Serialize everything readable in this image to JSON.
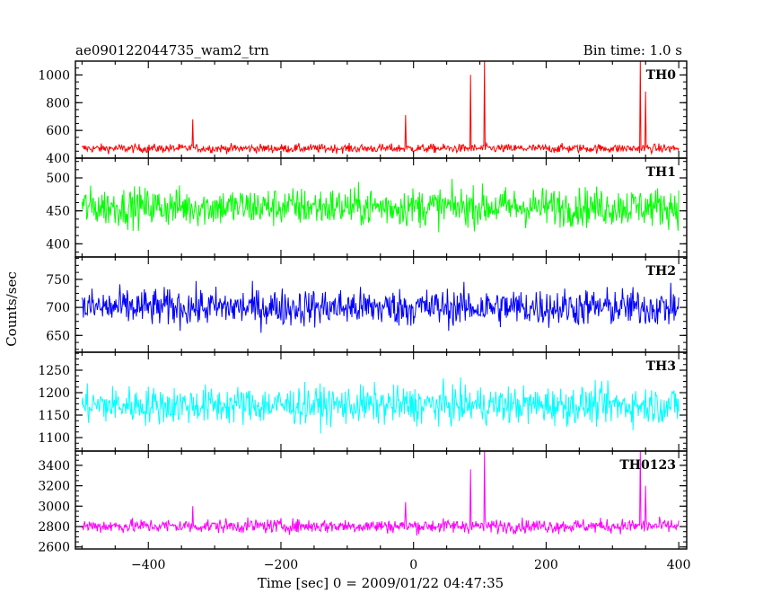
{
  "header": {
    "title": "ae090122044735_wam2_trn",
    "bin_time": "Bin time: 1.0 s"
  },
  "axes": {
    "ylabel": "Counts/sec",
    "xlabel": "Time [sec] 0 = 2009/01/22 04:47:35"
  },
  "chart_data": {
    "type": "line",
    "title": "ae090122044735_wam2_trn",
    "subtitle": "Bin time: 1.0 s",
    "xlabel": "Time [sec] 0 = 2009/01/22 04:47:35",
    "ylabel": "Counts/sec",
    "xlim": [
      -510,
      412
    ],
    "x_start": -500,
    "x_end": 400,
    "x_step": 1,
    "x_ticks": [
      -400,
      -200,
      0,
      200,
      400
    ],
    "x_tick_labels": [
      "−400",
      "−200",
      "0",
      "200",
      "400"
    ],
    "grid": false,
    "panels": [
      {
        "name": "TH0",
        "color": "#ff0000",
        "ylim": [
          400,
          1100
        ],
        "y_ticks": [
          400,
          600,
          800,
          1000
        ],
        "y_tick_labels": [
          "400",
          "600",
          "800",
          "1000"
        ],
        "baseline": 470,
        "noise_amplitude": 30,
        "peaks": [
          {
            "x": -333,
            "y": 680
          },
          {
            "x": -12,
            "y": 710
          },
          {
            "x": 86,
            "y": 1000
          },
          {
            "x": 107,
            "y": 1100
          },
          {
            "x": 342,
            "y": 1100
          },
          {
            "x": 350,
            "y": 880
          }
        ]
      },
      {
        "name": "TH1",
        "color": "#00ff00",
        "ylim": [
          380,
          530
        ],
        "y_ticks": [
          400,
          450,
          500
        ],
        "y_tick_labels": [
          "400",
          "450",
          "500"
        ],
        "baseline": 456,
        "noise_amplitude": 28,
        "peaks": []
      },
      {
        "name": "TH2",
        "color": "#0000ff",
        "ylim": [
          620,
          790
        ],
        "y_ticks": [
          650,
          700,
          750
        ],
        "y_tick_labels": [
          "650",
          "700",
          "750"
        ],
        "baseline": 700,
        "noise_amplitude": 32,
        "peaks": []
      },
      {
        "name": "TH3",
        "color": "#00ffff",
        "ylim": [
          1070,
          1290
        ],
        "y_ticks": [
          1100,
          1150,
          1200,
          1250
        ],
        "y_tick_labels": [
          "1100",
          "1150",
          "1200",
          "1250"
        ],
        "baseline": 1172,
        "noise_amplitude": 40,
        "peaks": []
      },
      {
        "name": "TH0123",
        "color": "#ff00ff",
        "ylim": [
          2580,
          3540
        ],
        "y_ticks": [
          2600,
          2800,
          3000,
          3200,
          3400
        ],
        "y_tick_labels": [
          "2600",
          "2800",
          "3000",
          "3200",
          "3400"
        ],
        "baseline": 2805,
        "noise_amplitude": 65,
        "peaks": [
          {
            "x": -333,
            "y": 3000
          },
          {
            "x": -12,
            "y": 3040
          },
          {
            "x": 86,
            "y": 3360
          },
          {
            "x": 107,
            "y": 3540
          },
          {
            "x": 342,
            "y": 3540
          },
          {
            "x": 350,
            "y": 3200
          }
        ]
      }
    ]
  }
}
